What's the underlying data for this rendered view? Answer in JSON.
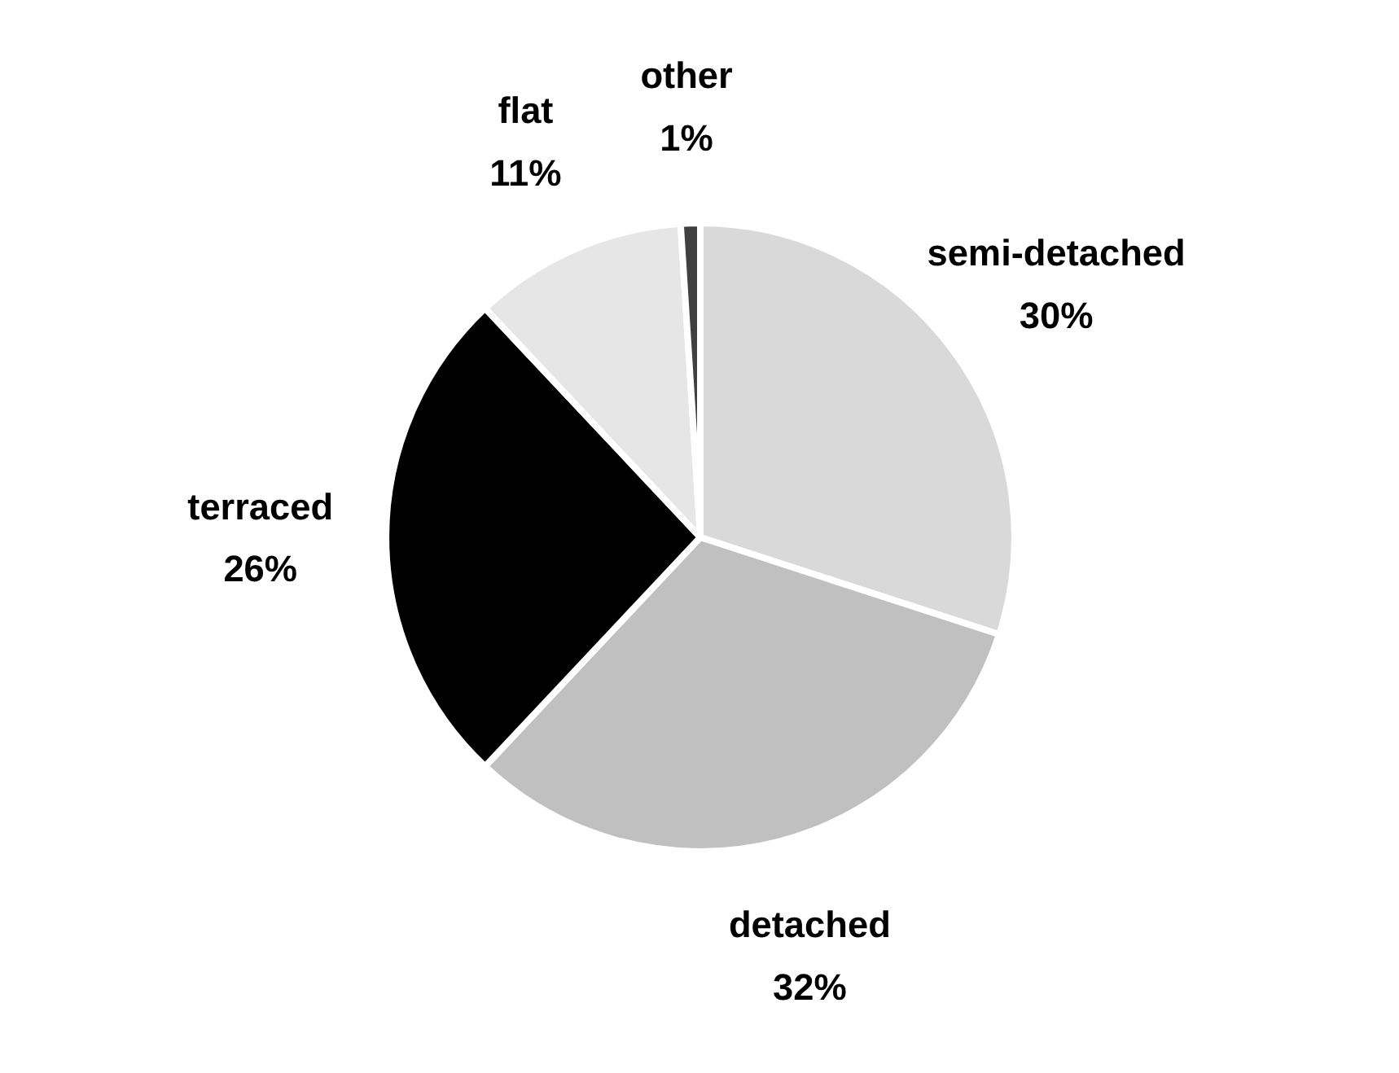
{
  "chart_data": {
    "type": "pie",
    "categories": [
      "semi-detached",
      "detached",
      "terraced",
      "flat",
      "other"
    ],
    "values": [
      30,
      32,
      26,
      11,
      1
    ],
    "colors": [
      "#d9d9d9",
      "#c0c0c0",
      "#000000",
      "#e6e6e6",
      "#404040"
    ],
    "value_labels": [
      "30%",
      "32%",
      "26%",
      "11%",
      "1%"
    ]
  }
}
